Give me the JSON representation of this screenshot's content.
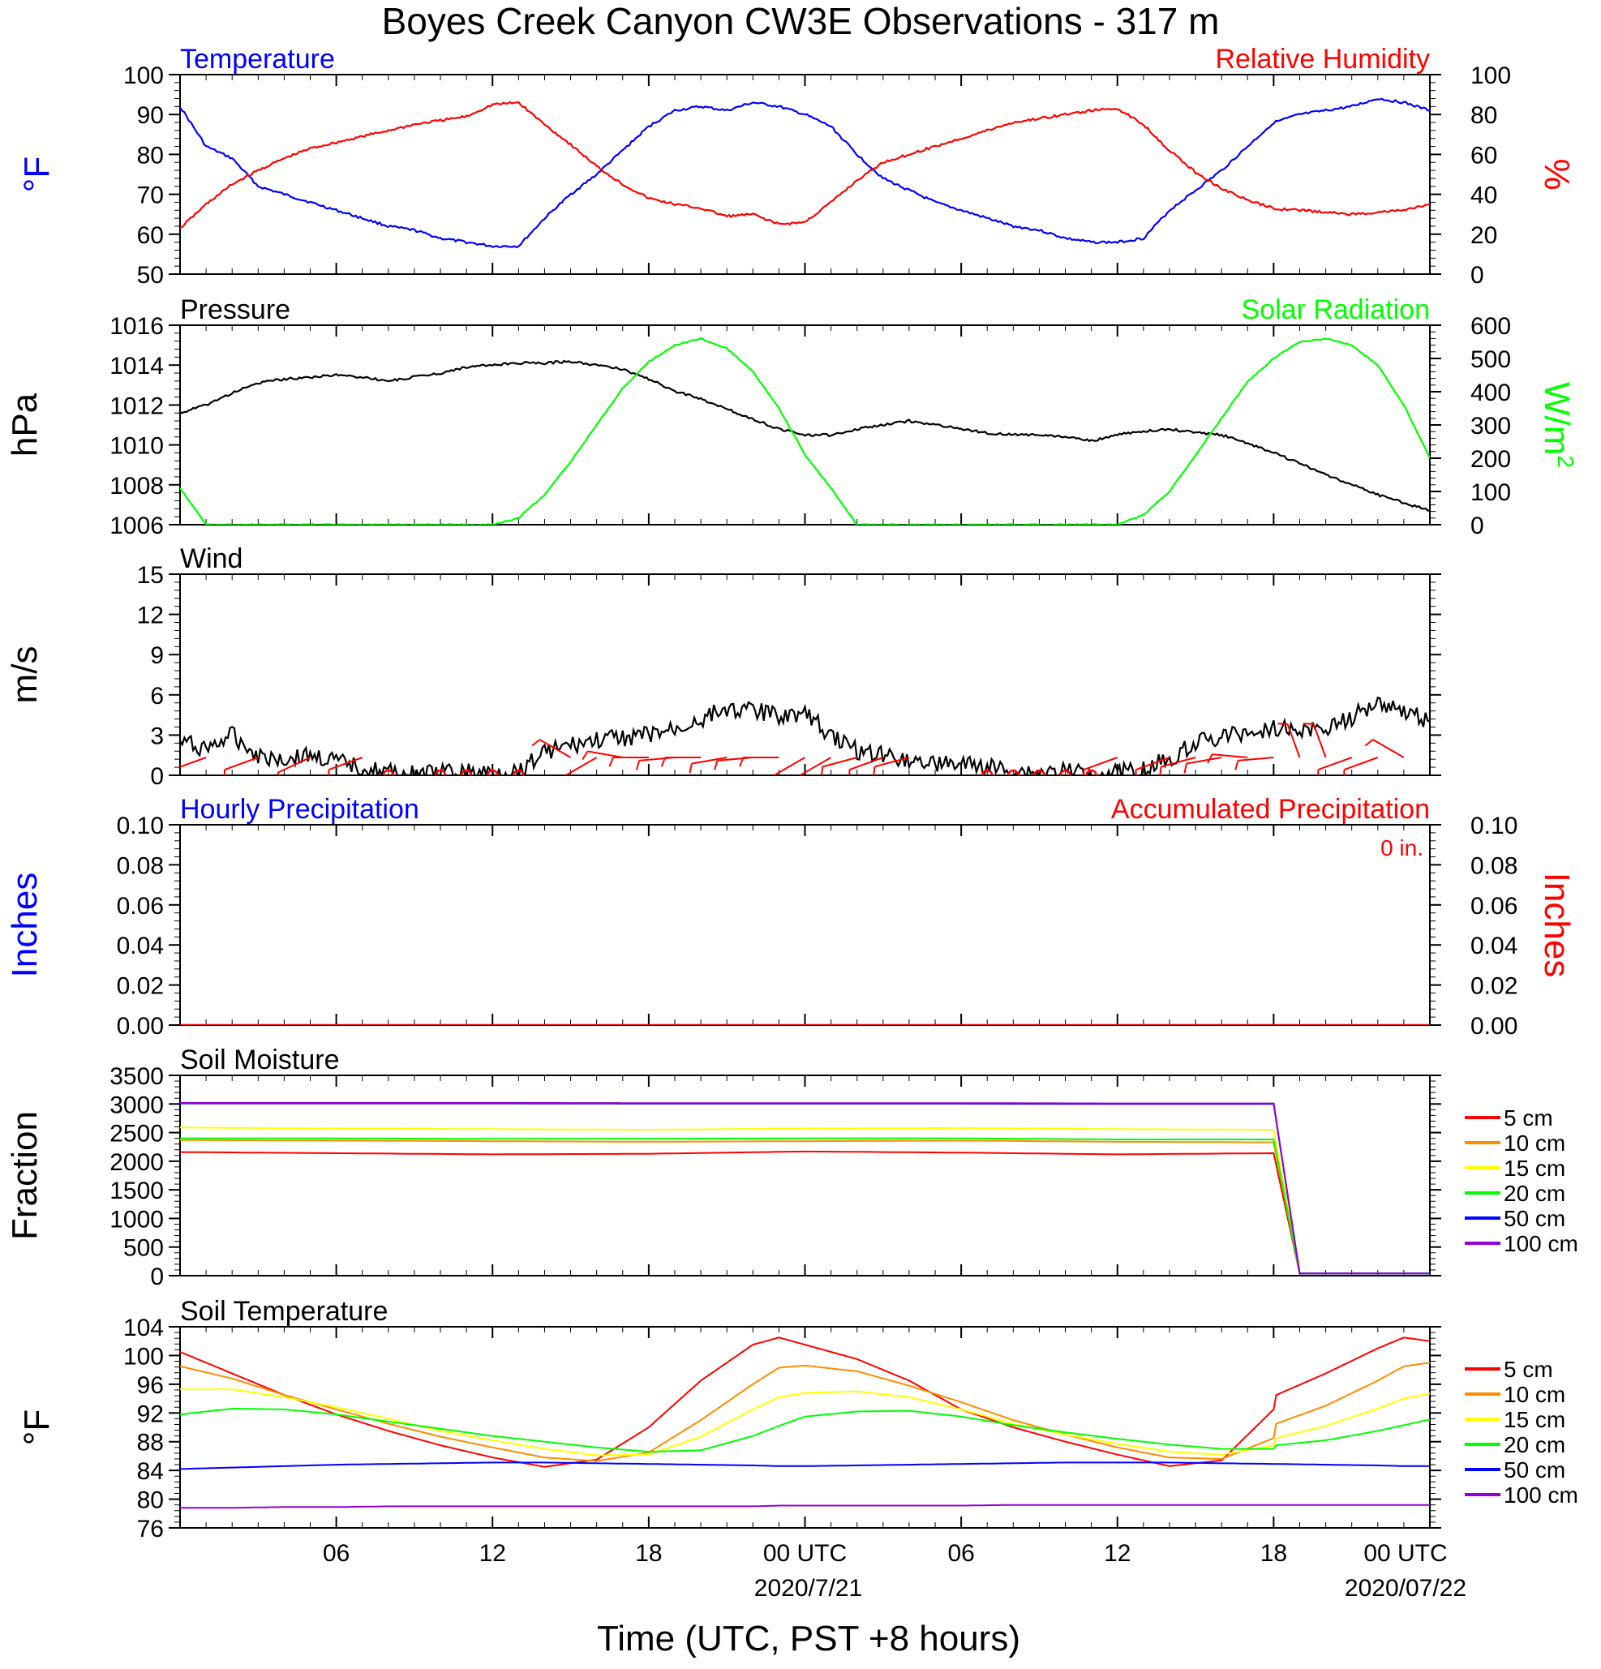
{
  "title": "Boyes Creek Canyon CW3E Observations - 317 m",
  "x_axis": {
    "label": "Time (UTC, PST +8 hours)",
    "ticks": [
      "06",
      "12",
      "18",
      "00 UTC",
      "06",
      "12",
      "18",
      "00 UTC"
    ],
    "date_labels": [
      "2020/7/21",
      "2020/07/22"
    ]
  },
  "colors": {
    "temperature": "#0000ff",
    "humidity": "#ff0000",
    "pressure": "#000000",
    "solar": "#00ff00",
    "wind_barb": "#ff0000",
    "depth_5cm": "#ff0000",
    "depth_10cm": "#ff8c00",
    "depth_15cm": "#ffff00",
    "depth_20cm": "#00ff00",
    "depth_50cm": "#0000ff",
    "depth_100cm": "#9400d3"
  },
  "chart_data": [
    {
      "type": "line",
      "panel": "Temperature / Relative Humidity",
      "left_title": "Temperature",
      "right_title": "Relative Humidity",
      "left_unit": "°F",
      "right_unit": "%",
      "ylim_left": [
        50,
        100
      ],
      "ylim_right": [
        0,
        100
      ],
      "yticks_left": [
        "100",
        "90",
        "80",
        "70",
        "60",
        "50"
      ],
      "yticks_right": [
        "100",
        "80",
        "60",
        "40",
        "20",
        "0"
      ],
      "x_hours": [
        0,
        1,
        2,
        3,
        4,
        5,
        6,
        7,
        8,
        9,
        10,
        11,
        12,
        13,
        14,
        15,
        16,
        17,
        18,
        19,
        20,
        21,
        22,
        23,
        24,
        25,
        26,
        27,
        28,
        29,
        30,
        31,
        32,
        33,
        34,
        35,
        36,
        37,
        38,
        39,
        40,
        41,
        42,
        43,
        44,
        45,
        46,
        47,
        48
      ],
      "series": [
        {
          "name": "Temperature",
          "axis": "left",
          "values": [
            92,
            82,
            79,
            72,
            70,
            68,
            66,
            64,
            62,
            61,
            59,
            58,
            57,
            57,
            64,
            70,
            75,
            81,
            87,
            91,
            92,
            91,
            93,
            92,
            90,
            87,
            80,
            74,
            71,
            68,
            66,
            64,
            62,
            61,
            59,
            58,
            58,
            59,
            66,
            71,
            76,
            82,
            88,
            90,
            91,
            92,
            94,
            93,
            91
          ]
        },
        {
          "name": "Relative Humidity",
          "axis": "right",
          "values": [
            23,
            35,
            45,
            52,
            58,
            63,
            66,
            69,
            72,
            75,
            77,
            79,
            85,
            86,
            75,
            65,
            54,
            45,
            38,
            35,
            33,
            29,
            30,
            25,
            26,
            36,
            47,
            56,
            60,
            64,
            68,
            72,
            76,
            78,
            80,
            82,
            83,
            75,
            62,
            51,
            43,
            37,
            33,
            32,
            31,
            30,
            31,
            32,
            35
          ]
        }
      ]
    },
    {
      "type": "line",
      "panel": "Pressure / Solar Radiation",
      "left_title": "Pressure",
      "right_title": "Solar Radiation",
      "left_unit": "hPa",
      "right_unit": "W/m2",
      "ylim_left": [
        1006,
        1016
      ],
      "ylim_right": [
        0,
        600
      ],
      "yticks_left": [
        "1016",
        "1014",
        "1012",
        "1010",
        "1008",
        "1006"
      ],
      "yticks_right": [
        "600",
        "500",
        "400",
        "300",
        "200",
        "100",
        "0"
      ],
      "x_hours": [
        0,
        1,
        2,
        3,
        4,
        5,
        6,
        7,
        8,
        9,
        10,
        11,
        12,
        13,
        14,
        15,
        16,
        17,
        18,
        19,
        20,
        21,
        22,
        23,
        24,
        25,
        26,
        27,
        28,
        29,
        30,
        31,
        32,
        33,
        34,
        35,
        36,
        37,
        38,
        39,
        40,
        41,
        42,
        43,
        44,
        45,
        46,
        47,
        48
      ],
      "series": [
        {
          "name": "Pressure",
          "axis": "left",
          "values": [
            1011.6,
            1012,
            1012.6,
            1013.1,
            1013.3,
            1013.4,
            1013.5,
            1013.4,
            1013.2,
            1013.4,
            1013.6,
            1013.9,
            1014.0,
            1014.1,
            1014.1,
            1014.2,
            1014.0,
            1013.8,
            1013.3,
            1012.7,
            1012.3,
            1011.8,
            1011.3,
            1010.8,
            1010.5,
            1010.5,
            1010.8,
            1011.0,
            1011.2,
            1011.0,
            1010.8,
            1010.6,
            1010.5,
            1010.5,
            1010.4,
            1010.2,
            1010.5,
            1010.7,
            1010.8,
            1010.6,
            1010.5,
            1010.1,
            1009.6,
            1009.1,
            1008.5,
            1008.0,
            1007.5,
            1007.1,
            1006.7
          ]
        },
        {
          "name": "Solar Radiation",
          "axis": "right",
          "values": [
            110,
            0,
            0,
            0,
            0,
            0,
            0,
            0,
            0,
            0,
            0,
            0,
            0,
            20,
            90,
            190,
            300,
            410,
            490,
            540,
            560,
            530,
            460,
            350,
            210,
            110,
            0,
            0,
            0,
            0,
            0,
            0,
            0,
            0,
            0,
            0,
            0,
            30,
            100,
            210,
            320,
            430,
            500,
            550,
            560,
            540,
            480,
            360,
            200
          ]
        }
      ]
    },
    {
      "type": "line",
      "panel": "Wind",
      "left_title": "Wind",
      "left_unit": "m/s",
      "ylim_left": [
        0,
        15
      ],
      "yticks_left": [
        "15",
        "12",
        "9",
        "6",
        "3",
        "0"
      ],
      "x_hours": [
        0,
        1,
        2,
        3,
        4,
        5,
        6,
        7,
        8,
        9,
        10,
        11,
        12,
        13,
        14,
        15,
        16,
        17,
        18,
        19,
        20,
        21,
        22,
        23,
        24,
        25,
        26,
        27,
        28,
        29,
        30,
        31,
        32,
        33,
        34,
        35,
        36,
        37,
        38,
        39,
        40,
        41,
        42,
        43,
        44,
        45,
        46,
        47,
        48
      ],
      "series": [
        {
          "name": "Wind Speed",
          "axis": "left",
          "values": [
            2.5,
            2.0,
            3.0,
            1.5,
            1.2,
            1.5,
            1.0,
            0.6,
            0.2,
            0.1,
            0.2,
            0.2,
            0.2,
            0.3,
            1.8,
            2.2,
            2.6,
            2.8,
            3.0,
            3.4,
            4.2,
            5.0,
            4.8,
            4.5,
            4.6,
            3.0,
            1.8,
            1.6,
            1.2,
            0.9,
            0.8,
            0.6,
            0.3,
            0.2,
            0.3,
            0.2,
            0.3,
            0.5,
            1.2,
            2.5,
            2.8,
            3.2,
            3.6,
            3.3,
            3.5,
            4.3,
            5.5,
            4.8,
            4.0
          ]
        }
      ],
      "barbs": [
        {
          "hour": 1,
          "dir": 250
        },
        {
          "hour": 3,
          "dir": 250
        },
        {
          "hour": 5,
          "dir": 245
        },
        {
          "hour": 7,
          "dir": 250
        },
        {
          "hour": 8,
          "calm": true
        },
        {
          "hour": 10,
          "calm": true
        },
        {
          "hour": 11,
          "calm": true
        },
        {
          "hour": 12,
          "calm": true
        },
        {
          "hour": 13,
          "calm": true
        },
        {
          "hour": 15,
          "dir": 300
        },
        {
          "hour": 16,
          "dir": 240
        },
        {
          "hour": 17,
          "dir": 280
        },
        {
          "hour": 18,
          "dir": 270
        },
        {
          "hour": 19,
          "dir": 265
        },
        {
          "hour": 20,
          "dir": 270
        },
        {
          "hour": 21,
          "dir": 260
        },
        {
          "hour": 22,
          "dir": 265
        },
        {
          "hour": 23,
          "dir": 270
        },
        {
          "hour": 24,
          "dir": 240
        },
        {
          "hour": 25,
          "dir": 240
        },
        {
          "hour": 26,
          "dir": 255
        },
        {
          "hour": 27,
          "dir": 250
        },
        {
          "hour": 28,
          "dir": 255
        },
        {
          "hour": 31,
          "calm": true
        },
        {
          "hour": 32,
          "calm": true
        },
        {
          "hour": 33,
          "calm": true
        },
        {
          "hour": 34,
          "calm": true
        },
        {
          "hour": 35,
          "calm": true
        },
        {
          "hour": 36,
          "dir": 250
        },
        {
          "hour": 38,
          "dir": 250
        },
        {
          "hour": 39,
          "dir": 255
        },
        {
          "hour": 40,
          "dir": 260
        },
        {
          "hour": 41,
          "dir": 275
        },
        {
          "hour": 42,
          "dir": 265
        },
        {
          "hour": 43,
          "dir": 340
        },
        {
          "hour": 44,
          "dir": 340
        },
        {
          "hour": 45,
          "dir": 250
        },
        {
          "hour": 46,
          "dir": 250
        },
        {
          "hour": 47,
          "dir": 300
        }
      ]
    },
    {
      "type": "line",
      "panel": "Precipitation",
      "left_title": "Hourly Precipitation",
      "right_title": "Accumulated Precipitation",
      "annotation": "0 in.",
      "left_unit": "Inches",
      "right_unit": "Inches",
      "ylim_left": [
        0,
        0.1
      ],
      "ylim_right": [
        0,
        0.1
      ],
      "yticks_left": [
        "0.10",
        "0.08",
        "0.06",
        "0.04",
        "0.02",
        "0.00"
      ],
      "yticks_right": [
        "0.10",
        "0.08",
        "0.06",
        "0.04",
        "0.02",
        "0.00"
      ],
      "x_hours": [
        0,
        48
      ],
      "series": [
        {
          "name": "Hourly Precipitation",
          "axis": "left",
          "values": [
            0,
            0
          ]
        },
        {
          "name": "Accumulated Precipitation",
          "axis": "right",
          "values": [
            0,
            0
          ]
        }
      ]
    },
    {
      "type": "line",
      "panel": "Soil Moisture",
      "left_title": "Soil Moisture",
      "left_unit": "Fraction",
      "ylim_left": [
        0,
        3500
      ],
      "yticks_left": [
        "3500",
        "3000",
        "2500",
        "2000",
        "1500",
        "1000",
        "500",
        "0"
      ],
      "x_hours": [
        0,
        6,
        12,
        18,
        24,
        30,
        36,
        42,
        43,
        48
      ],
      "series": [
        {
          "name": "5 cm",
          "values": [
            2160,
            2140,
            2120,
            2130,
            2170,
            2150,
            2120,
            2140,
            40,
            40
          ]
        },
        {
          "name": "10 cm",
          "values": [
            2370,
            2360,
            2350,
            2340,
            2350,
            2360,
            2340,
            2330,
            40,
            40
          ]
        },
        {
          "name": "15 cm",
          "values": [
            2590,
            2570,
            2560,
            2550,
            2570,
            2580,
            2560,
            2550,
            40,
            40
          ]
        },
        {
          "name": "20 cm",
          "values": [
            2400,
            2400,
            2390,
            2390,
            2400,
            2400,
            2380,
            2380,
            40,
            40
          ]
        },
        {
          "name": "50 cm",
          "values": [
            3010,
            3010,
            3010,
            3005,
            3005,
            3005,
            3000,
            3000,
            40,
            40
          ]
        },
        {
          "name": "100 cm",
          "values": [
            3020,
            3020,
            3020,
            3015,
            3015,
            3015,
            3010,
            3010,
            40,
            40
          ]
        }
      ]
    },
    {
      "type": "line",
      "panel": "Soil Temperature",
      "left_title": "Soil Temperature",
      "left_unit": "°F",
      "ylim_left": [
        76,
        104
      ],
      "yticks_left": [
        "104",
        "100",
        "96",
        "92",
        "88",
        "84",
        "80",
        "76"
      ],
      "x_hours": [
        0,
        2,
        4,
        6,
        8,
        10,
        12,
        14,
        16,
        18,
        20,
        22,
        23,
        24,
        26,
        28,
        30,
        32,
        34,
        36,
        38,
        40,
        42,
        42.1,
        44,
        46,
        47,
        48
      ],
      "series": [
        {
          "name": "5 cm",
          "values": [
            100.5,
            97.5,
            94.5,
            91.8,
            89.5,
            87.5,
            85.8,
            84.5,
            85.5,
            90,
            96.5,
            101.5,
            102.5,
            101.5,
            99.5,
            96.5,
            92.5,
            90,
            88,
            86.2,
            84.6,
            85.4,
            92.5,
            94.5,
            97.5,
            101,
            102.5,
            102
          ]
        },
        {
          "name": "10 cm",
          "values": [
            98.5,
            96.8,
            94.5,
            92.5,
            90.5,
            88.7,
            87.2,
            85.8,
            85.3,
            86.5,
            91,
            96,
            98.3,
            98.6,
            97.8,
            95.8,
            93.5,
            91,
            89,
            87.2,
            85.8,
            85.6,
            88.5,
            90.5,
            93,
            96.5,
            98.5,
            99
          ]
        },
        {
          "name": "15 cm",
          "values": [
            95.3,
            95.3,
            94.2,
            92.8,
            91.2,
            89.5,
            88.2,
            87,
            86.1,
            86.2,
            88.7,
            92.5,
            94.2,
            94.8,
            95,
            94.2,
            92.5,
            90.5,
            89,
            87.7,
            86.6,
            86.2,
            87.5,
            88.5,
            90.2,
            92.6,
            94,
            94.7
          ]
        },
        {
          "name": "20 cm",
          "values": [
            91.8,
            92.6,
            92.5,
            91.8,
            90.8,
            89.8,
            88.8,
            88,
            87.2,
            86.6,
            86.8,
            88.8,
            90.2,
            91.5,
            92.2,
            92.3,
            91.5,
            90.3,
            89.3,
            88.4,
            87.6,
            87,
            87,
            87.5,
            88.2,
            89.5,
            90.3,
            91.1
          ]
        },
        {
          "name": "50 cm",
          "values": [
            84.2,
            84.4,
            84.6,
            84.8,
            84.9,
            85.0,
            85.1,
            85.1,
            85.0,
            84.9,
            84.8,
            84.7,
            84.6,
            84.6,
            84.7,
            84.8,
            84.9,
            85.0,
            85.1,
            85.1,
            85.1,
            85.0,
            84.9,
            84.9,
            84.8,
            84.7,
            84.6,
            84.6
          ]
        },
        {
          "name": "100 cm",
          "values": [
            78.8,
            78.8,
            78.9,
            78.9,
            79.0,
            79.0,
            79.0,
            79.0,
            79.0,
            79.0,
            79.0,
            79.0,
            79.1,
            79.1,
            79.1,
            79.1,
            79.1,
            79.2,
            79.2,
            79.2,
            79.2,
            79.2,
            79.2,
            79.2,
            79.2,
            79.2,
            79.2,
            79.2
          ]
        }
      ]
    }
  ],
  "legend": {
    "items": [
      "5 cm",
      "10 cm",
      "15 cm",
      "20 cm",
      "50 cm",
      "100 cm"
    ]
  }
}
